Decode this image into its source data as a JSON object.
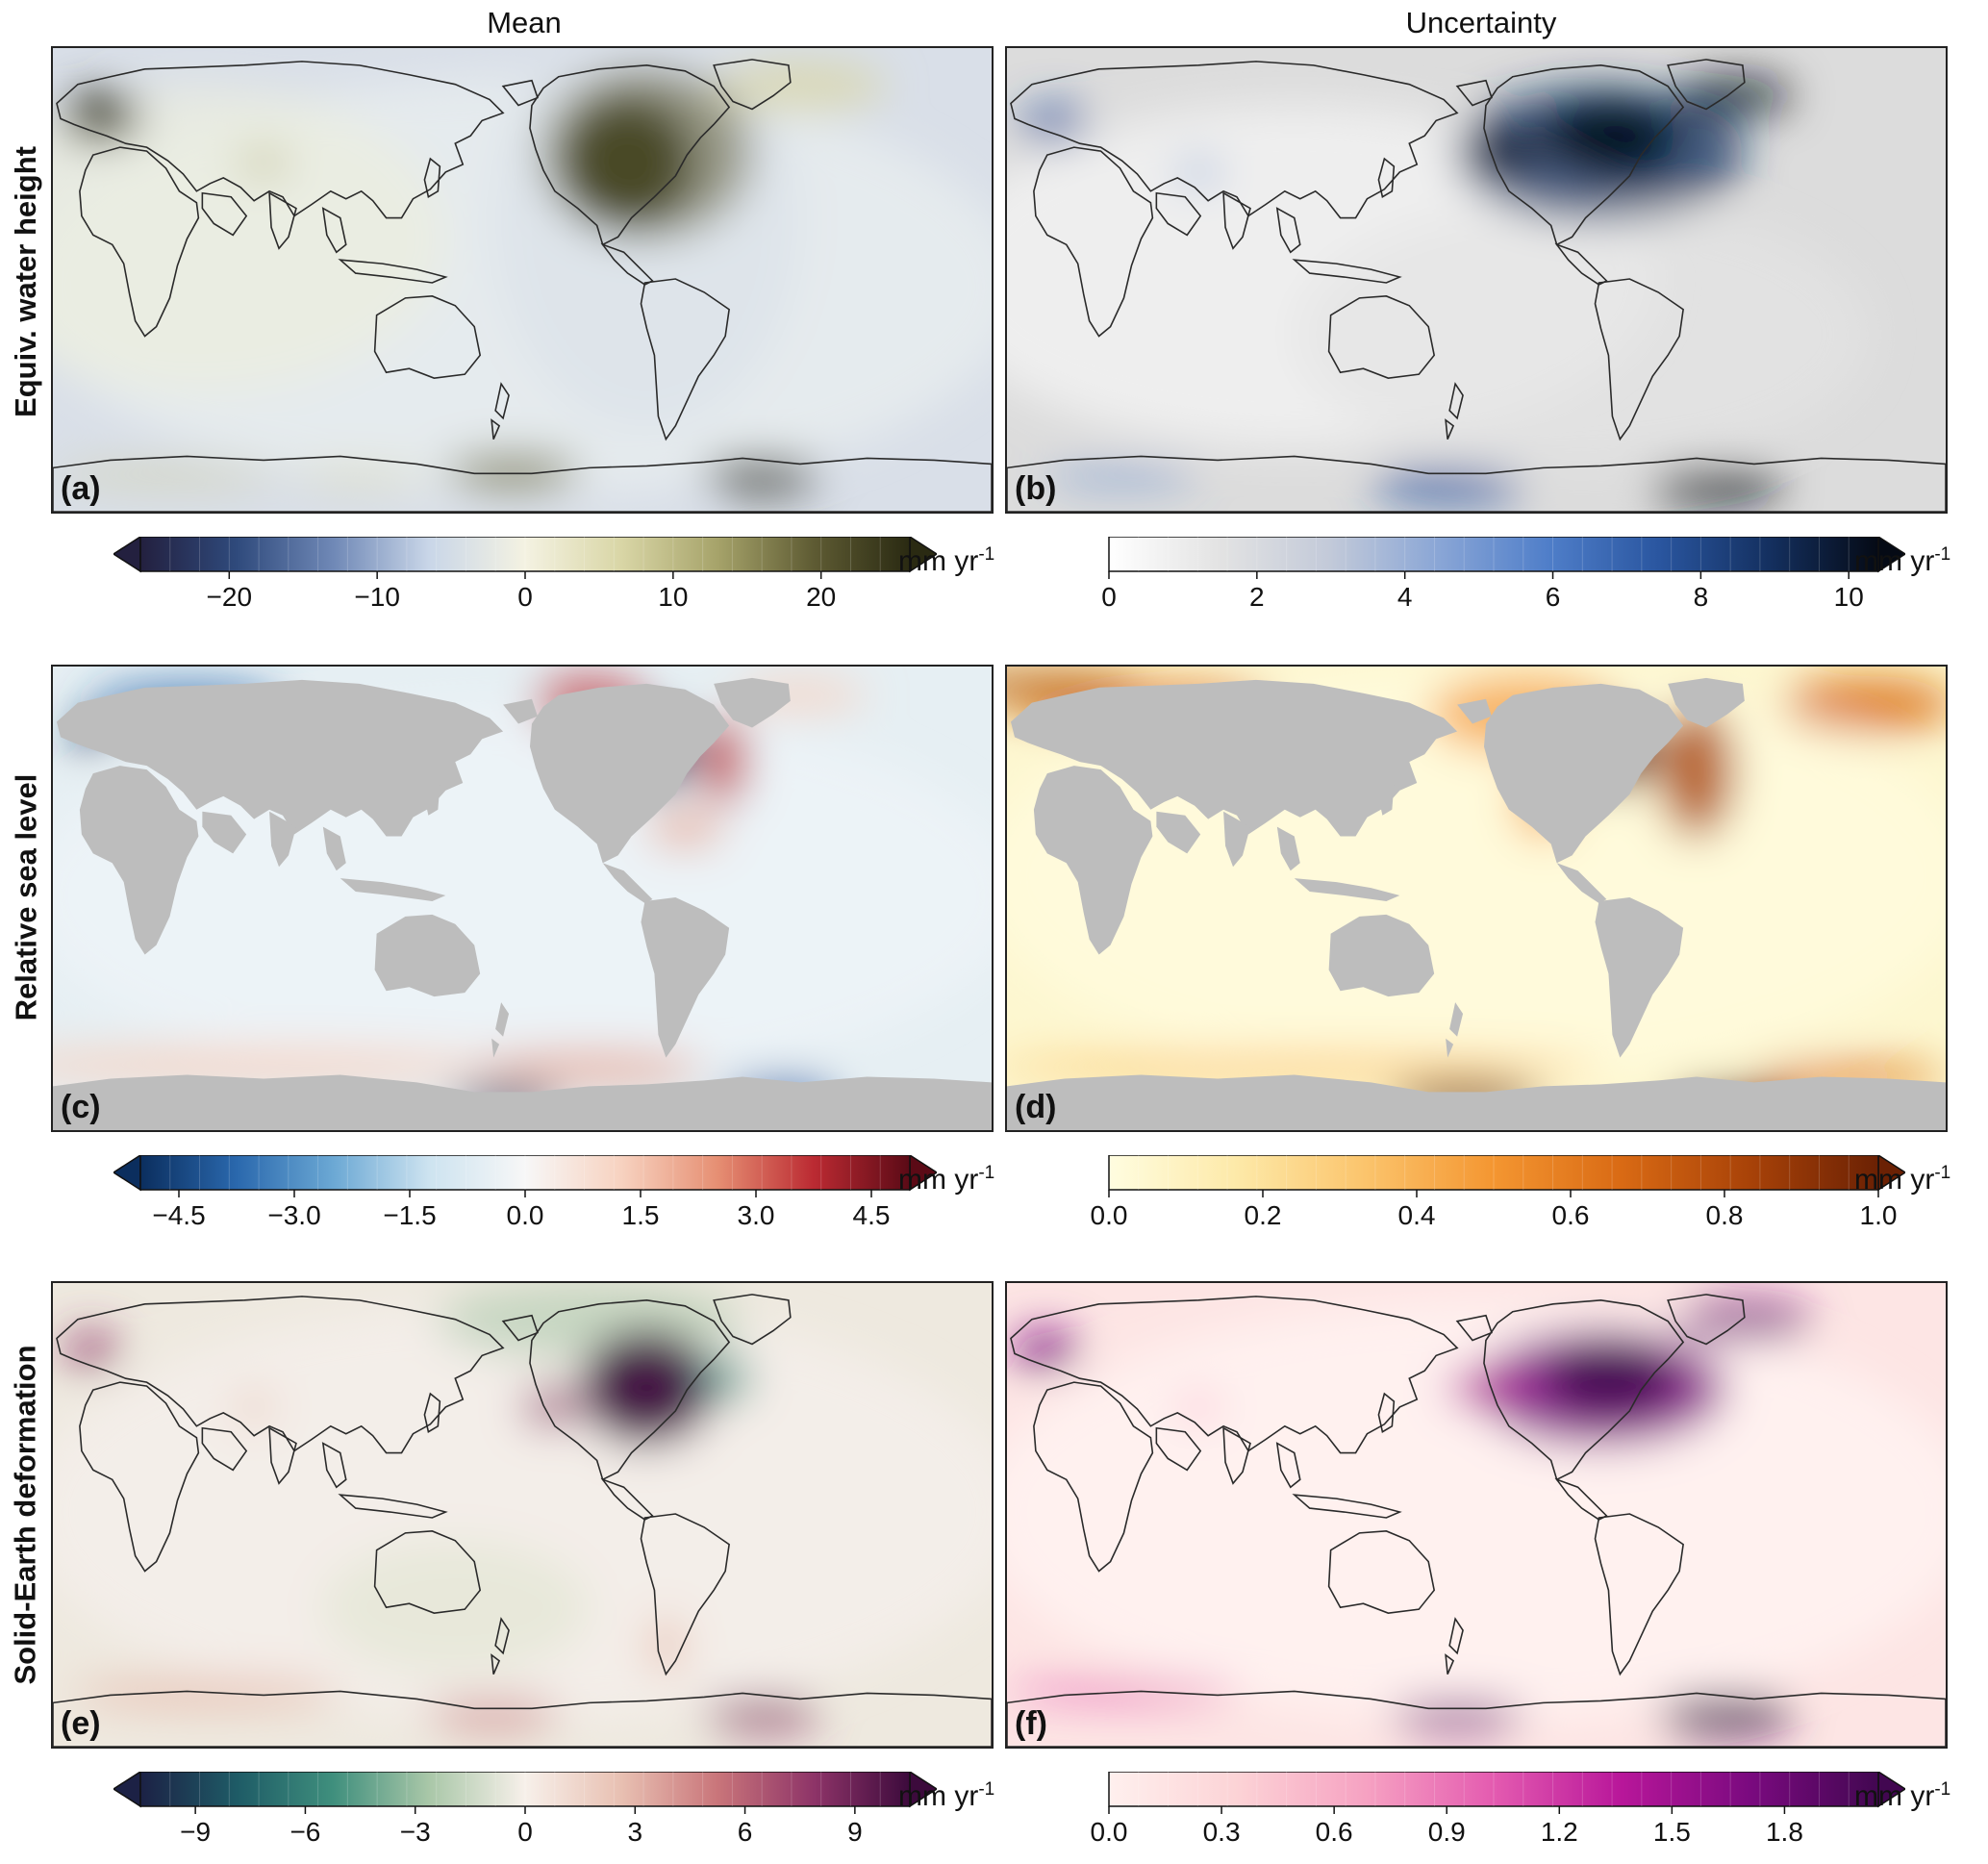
{
  "column_titles": [
    "Mean",
    "Uncertainty"
  ],
  "row_labels": [
    "Equiv. water height",
    "Relative sea level",
    "Solid-Earth deformation"
  ],
  "panels": [
    {
      "label": "(a)",
      "scheme": "ewh_mean",
      "land": "outline"
    },
    {
      "label": "(b)",
      "scheme": "ewh_unc",
      "land": "outline"
    },
    {
      "label": "(c)",
      "scheme": "rsl_mean",
      "land": "gray"
    },
    {
      "label": "(d)",
      "scheme": "rsl_unc",
      "land": "gray"
    },
    {
      "label": "(e)",
      "scheme": "sed_mean",
      "land": "outline"
    },
    {
      "label": "(f)",
      "scheme": "sed_unc",
      "land": "outline"
    }
  ],
  "colorbars": [
    {
      "unit": "mm yr",
      "unit_exp": "-1",
      "ticks": [
        "−20",
        "−10",
        "0",
        "10",
        "20"
      ],
      "tick_values": [
        -20,
        -10,
        0,
        10,
        20
      ],
      "range": [
        -26,
        26
      ],
      "extend": "both",
      "colors": [
        "#23203f",
        "#2f4a7c",
        "#6f88b6",
        "#c9d6e8",
        "#f4f2e2",
        "#d9d6a6",
        "#a6a36a",
        "#5e5b33",
        "#2a2a12"
      ]
    },
    {
      "unit": "mm yr",
      "unit_exp": "-1",
      "ticks": [
        "0",
        "2",
        "4",
        "6",
        "8",
        "10"
      ],
      "tick_values": [
        0,
        2,
        4,
        6,
        8,
        10
      ],
      "range": [
        0,
        10.4
      ],
      "extend": "max",
      "colors": [
        "#ffffff",
        "#e3e3e3",
        "#c3cad9",
        "#8aa6d6",
        "#4f7ec9",
        "#2a56a0",
        "#143060",
        "#050a15"
      ]
    },
    {
      "unit": "mm yr",
      "unit_exp": "-1",
      "ticks": [
        "−4.5",
        "−3.0",
        "−1.5",
        "0.0",
        "1.5",
        "3.0",
        "4.5"
      ],
      "tick_values": [
        -4.5,
        -3.0,
        -1.5,
        0.0,
        1.5,
        3.0,
        4.5
      ],
      "range": [
        -5.0,
        5.0
      ],
      "extend": "both",
      "colors": [
        "#0b2e5e",
        "#2a68ad",
        "#6ba8d4",
        "#cde3f0",
        "#f7f7f7",
        "#f7d2c0",
        "#e68f73",
        "#bb2a32",
        "#5b0a16"
      ]
    },
    {
      "unit": "mm yr",
      "unit_exp": "-1",
      "ticks": [
        "0.0",
        "0.2",
        "0.4",
        "0.6",
        "0.8",
        "1.0"
      ],
      "tick_values": [
        0.0,
        0.2,
        0.4,
        0.6,
        0.8,
        1.0
      ],
      "range": [
        0,
        1.0
      ],
      "extend": "max",
      "colors": [
        "#fffde0",
        "#fde9a8",
        "#fbc46c",
        "#f49631",
        "#d96a14",
        "#a84208",
        "#6b2104"
      ]
    },
    {
      "unit": "mm yr",
      "unit_exp": "-1",
      "ticks": [
        "−9",
        "−6",
        "−3",
        "0",
        "3",
        "6",
        "9"
      ],
      "tick_values": [
        -9,
        -6,
        -3,
        0,
        3,
        6,
        9
      ],
      "range": [
        -10.5,
        10.5
      ],
      "extend": "both",
      "colors": [
        "#1c2145",
        "#1e5b66",
        "#3f8f7d",
        "#a9c7a8",
        "#f7f0ea",
        "#e8c0b2",
        "#c9757a",
        "#8e3468",
        "#3c0a3c"
      ]
    },
    {
      "unit": "mm yr",
      "unit_exp": "-1",
      "ticks": [
        "0.0",
        "0.3",
        "0.6",
        "0.9",
        "1.2",
        "1.5",
        "1.8"
      ],
      "tick_values": [
        0.0,
        0.3,
        0.6,
        0.9,
        1.2,
        1.5,
        1.8
      ],
      "range": [
        0,
        2.05
      ],
      "extend": "max",
      "colors": [
        "#fff0ee",
        "#fcd3d6",
        "#f6a2c2",
        "#e45bb0",
        "#b8169a",
        "#7a0a7f",
        "#420751"
      ]
    }
  ]
}
